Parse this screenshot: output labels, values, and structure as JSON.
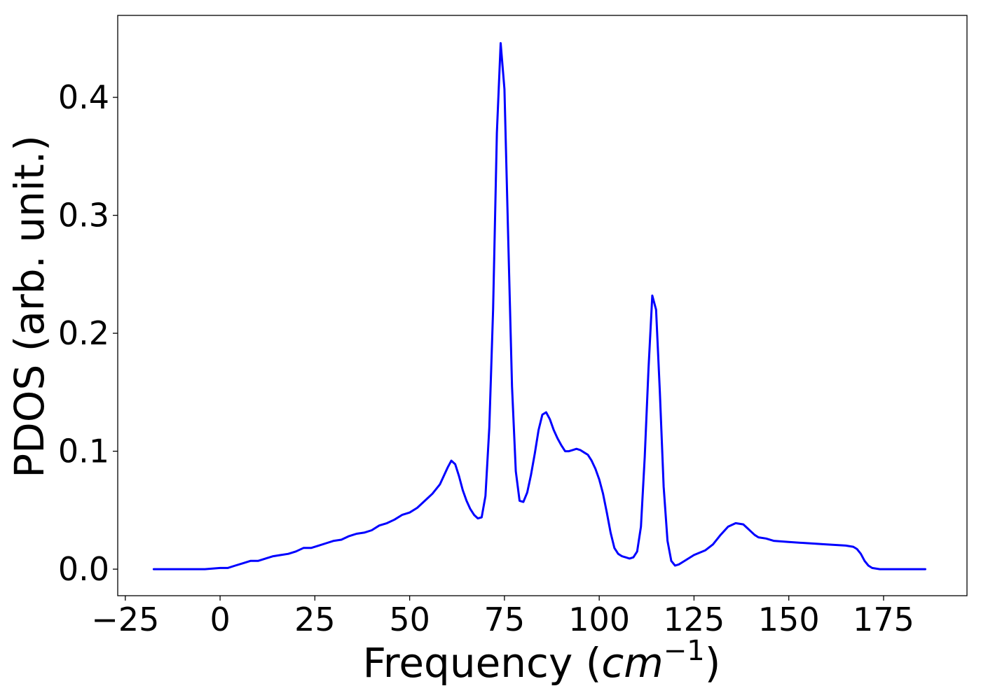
{
  "chart_data": {
    "type": "line",
    "title": "",
    "xlabel": "Frequency",
    "xlabel_unit_base": "cm",
    "xlabel_unit_exp": "−1",
    "ylabel": "PDOS (arb. unit.)",
    "xlim": [
      -27,
      197
    ],
    "ylim": [
      -0.0225,
      0.4695
    ],
    "xticks": [
      -25,
      0,
      25,
      50,
      75,
      100,
      125,
      150,
      175
    ],
    "xtick_labels": [
      "−25",
      "0",
      "25",
      "50",
      "75",
      "100",
      "125",
      "150",
      "175"
    ],
    "yticks": [
      0.0,
      0.1,
      0.2,
      0.3,
      0.4
    ],
    "ytick_labels": [
      "0.0",
      "0.1",
      "0.2",
      "0.3",
      "0.4"
    ],
    "grid": false,
    "series": [
      {
        "color": "#0000ff",
        "x": [
          -17.5,
          -10,
          -4,
          0,
          2,
          4,
          6,
          8,
          10,
          12,
          14,
          16,
          18,
          20,
          22,
          24,
          26,
          28,
          30,
          32,
          34,
          36,
          38,
          40,
          42,
          44,
          46,
          48,
          50,
          52,
          54,
          56,
          58,
          60,
          61,
          62,
          63,
          64,
          65,
          66,
          67,
          68,
          69,
          70,
          71,
          72,
          73,
          74,
          75,
          76,
          77,
          78,
          79,
          80,
          81,
          82,
          83,
          84,
          85,
          86,
          87,
          88,
          89,
          90,
          91,
          92,
          93,
          94,
          95,
          96,
          97,
          98,
          99,
          100,
          101,
          102,
          103,
          104,
          105,
          106,
          107,
          108,
          109,
          110,
          111,
          112,
          113,
          114,
          115,
          116,
          117,
          118,
          119,
          120,
          121,
          122,
          123,
          125,
          128,
          130,
          132,
          134,
          136,
          138,
          139,
          140,
          141,
          142,
          144,
          146,
          150,
          155,
          160,
          165,
          167,
          168,
          169,
          170,
          171,
          172,
          174,
          178,
          186
        ],
        "y": [
          0,
          0,
          0,
          0.001,
          0.001,
          0.003,
          0.005,
          0.007,
          0.007,
          0.009,
          0.011,
          0.012,
          0.013,
          0.015,
          0.018,
          0.018,
          0.02,
          0.022,
          0.024,
          0.025,
          0.028,
          0.03,
          0.031,
          0.033,
          0.037,
          0.039,
          0.042,
          0.046,
          0.048,
          0.052,
          0.058,
          0.064,
          0.072,
          0.086,
          0.092,
          0.089,
          0.079,
          0.067,
          0.058,
          0.051,
          0.046,
          0.043,
          0.044,
          0.062,
          0.12,
          0.22,
          0.37,
          0.446,
          0.407,
          0.28,
          0.155,
          0.083,
          0.058,
          0.057,
          0.065,
          0.08,
          0.098,
          0.118,
          0.131,
          0.133,
          0.127,
          0.118,
          0.111,
          0.105,
          0.1,
          0.1,
          0.101,
          0.102,
          0.101,
          0.099,
          0.097,
          0.092,
          0.085,
          0.076,
          0.064,
          0.048,
          0.031,
          0.018,
          0.013,
          0.011,
          0.01,
          0.009,
          0.01,
          0.015,
          0.036,
          0.095,
          0.17,
          0.232,
          0.22,
          0.15,
          0.07,
          0.024,
          0.007,
          0.003,
          0.004,
          0.006,
          0.008,
          0.012,
          0.016,
          0.021,
          0.029,
          0.036,
          0.039,
          0.038,
          0.035,
          0.032,
          0.029,
          0.027,
          0.026,
          0.024,
          0.023,
          0.022,
          0.021,
          0.02,
          0.019,
          0.017,
          0.013,
          0.007,
          0.003,
          0.001,
          0,
          0,
          0
        ]
      }
    ]
  }
}
